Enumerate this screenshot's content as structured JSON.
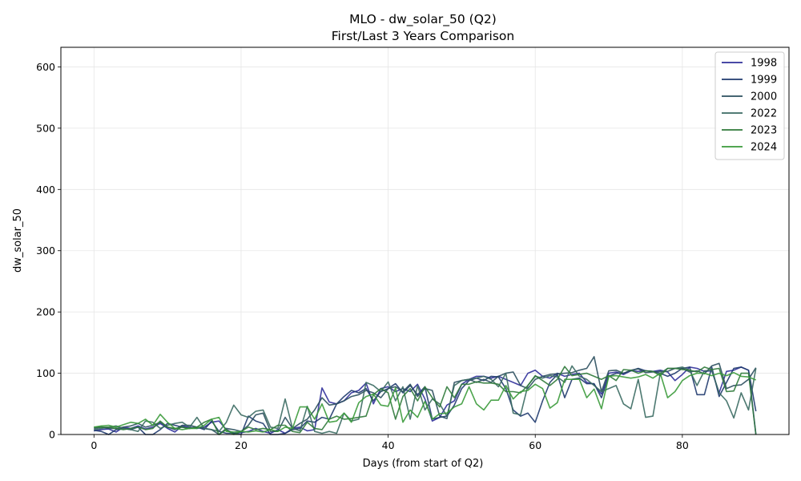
{
  "chart_data": {
    "type": "line",
    "title": "MLO - dw_solar_50 (Q2)",
    "subtitle": "First/Last 3 Years Comparison",
    "xlabel": "Days (from start of Q2)",
    "ylabel": "dw_solar_50",
    "xlim": [
      -4.5,
      94.5
    ],
    "ylim": [
      0,
      632
    ],
    "xticks": [
      0,
      20,
      40,
      60,
      80
    ],
    "yticks": [
      0,
      100,
      200,
      300,
      400,
      500,
      600
    ],
    "grid": true,
    "legend_position": "top-right",
    "series": [
      {
        "name": "1998",
        "color": "#2f2f9a",
        "values": [
          6,
          8,
          9,
          4,
          12,
          10,
          14,
          9,
          12,
          18,
          10,
          4,
          14,
          12,
          10,
          12,
          20,
          22,
          8,
          2,
          3,
          5,
          10,
          5,
          2,
          8,
          2,
          10,
          12,
          6,
          8,
          76,
          53,
          50,
          55,
          68,
          72,
          84,
          50,
          75,
          78,
          70,
          75,
          70,
          82,
          58,
          22,
          28,
          48,
          55,
          82,
          90,
          95,
          95,
          92,
          95,
          90,
          85,
          80,
          100,
          105,
          95,
          92,
          100,
          95,
          98,
          100,
          85,
          82,
          66,
          100,
          102,
          98,
          104,
          103,
          104,
          103,
          105,
          102,
          88,
          98,
          110,
          108,
          103,
          104,
          68,
          103,
          105,
          110,
          105,
          0
        ]
      },
      {
        "name": "1999",
        "color": "#1f3a6e",
        "values": [
          7,
          5,
          0,
          8,
          10,
          8,
          12,
          0,
          0,
          8,
          18,
          15,
          12,
          10,
          12,
          8,
          22,
          5,
          2,
          2,
          0,
          30,
          22,
          18,
          0,
          0,
          2,
          8,
          10,
          22,
          20,
          28,
          25,
          50,
          62,
          72,
          68,
          75,
          55,
          70,
          75,
          83,
          68,
          80,
          65,
          78,
          25,
          28,
          30,
          48,
          75,
          88,
          92,
          88,
          95,
          94,
          75,
          40,
          30,
          35,
          20,
          55,
          85,
          98,
          60,
          90,
          92,
          83,
          83,
          60,
          95,
          100,
          100,
          104,
          108,
          104,
          103,
          100,
          95,
          100,
          108,
          110,
          65,
          65,
          110,
          62,
          85,
          108,
          110,
          105,
          38
        ]
      },
      {
        "name": "2000",
        "color": "#2b4f5e",
        "values": [
          10,
          12,
          10,
          10,
          12,
          14,
          18,
          12,
          15,
          20,
          12,
          8,
          15,
          15,
          12,
          10,
          8,
          0,
          10,
          8,
          5,
          15,
          32,
          35,
          5,
          5,
          28,
          10,
          18,
          25,
          40,
          60,
          48,
          50,
          55,
          62,
          65,
          72,
          68,
          60,
          75,
          78,
          70,
          82,
          62,
          75,
          72,
          30,
          26,
          85,
          88,
          90,
          85,
          90,
          85,
          95,
          100,
          102,
          80,
          75,
          90,
          95,
          98,
          99,
          100,
          101,
          105,
          108,
          127,
          70,
          104,
          105,
          100,
          105,
          107,
          101,
          102,
          103,
          103,
          108,
          108,
          102,
          104,
          99,
          112,
          116,
          75,
          80,
          81,
          90,
          109
        ]
      },
      {
        "name": "2022",
        "color": "#3a6a62",
        "values": [
          8,
          10,
          12,
          14,
          10,
          8,
          5,
          22,
          20,
          10,
          15,
          18,
          20,
          12,
          28,
          10,
          8,
          5,
          20,
          48,
          32,
          28,
          38,
          40,
          12,
          10,
          58,
          10,
          6,
          46,
          5,
          2,
          5,
          2,
          35,
          22,
          25,
          85,
          80,
          70,
          86,
          55,
          78,
          25,
          80,
          40,
          58,
          50,
          30,
          80,
          88,
          90,
          92,
          95,
          90,
          78,
          100,
          35,
          32,
          80,
          95,
          92,
          96,
          94,
          85,
          112,
          95,
          90,
          80,
          70,
          75,
          80,
          50,
          42,
          90,
          28,
          30,
          100,
          108,
          108,
          110,
          105,
          80,
          104,
          105,
          68,
          55,
          27,
          68,
          40,
          108
        ]
      },
      {
        "name": "2023",
        "color": "#2f7a3a",
        "values": [
          12,
          12,
          12,
          10,
          8,
          10,
          12,
          8,
          10,
          22,
          12,
          10,
          12,
          10,
          12,
          20,
          25,
          0,
          8,
          0,
          5,
          12,
          8,
          10,
          8,
          15,
          15,
          5,
          3,
          20,
          10,
          8,
          25,
          30,
          25,
          26,
          28,
          30,
          65,
          75,
          68,
          25,
          62,
          75,
          55,
          78,
          60,
          45,
          78,
          60,
          82,
          82,
          86,
          84,
          84,
          82,
          70,
          70,
          68,
          80,
          96,
          88,
          80,
          90,
          111,
          96,
          98,
          100,
          95,
          90,
          96,
          88,
          106,
          105,
          100,
          104,
          103,
          96,
          108,
          108,
          106,
          105,
          102,
          110,
          106,
          108,
          70,
          71,
          100,
          100,
          0
        ]
      },
      {
        "name": "2024",
        "color": "#3a9a3a",
        "values": [
          12,
          14,
          15,
          12,
          16,
          20,
          18,
          25,
          15,
          33,
          20,
          10,
          8,
          10,
          10,
          15,
          25,
          28,
          5,
          4,
          5,
          4,
          6,
          4,
          8,
          5,
          12,
          10,
          45,
          45,
          25,
          50,
          20,
          22,
          35,
          20,
          52,
          62,
          66,
          48,
          46,
          76,
          20,
          40,
          28,
          54,
          25,
          34,
          35,
          45,
          50,
          78,
          50,
          40,
          56,
          56,
          80,
          58,
          70,
          72,
          82,
          75,
          43,
          52,
          90,
          90,
          90,
          60,
          74,
          42,
          95,
          96,
          94,
          92,
          94,
          98,
          92,
          100,
          60,
          70,
          88,
          96,
          100,
          100,
          96,
          100,
          96,
          101,
          95,
          94,
          89
        ]
      }
    ]
  }
}
